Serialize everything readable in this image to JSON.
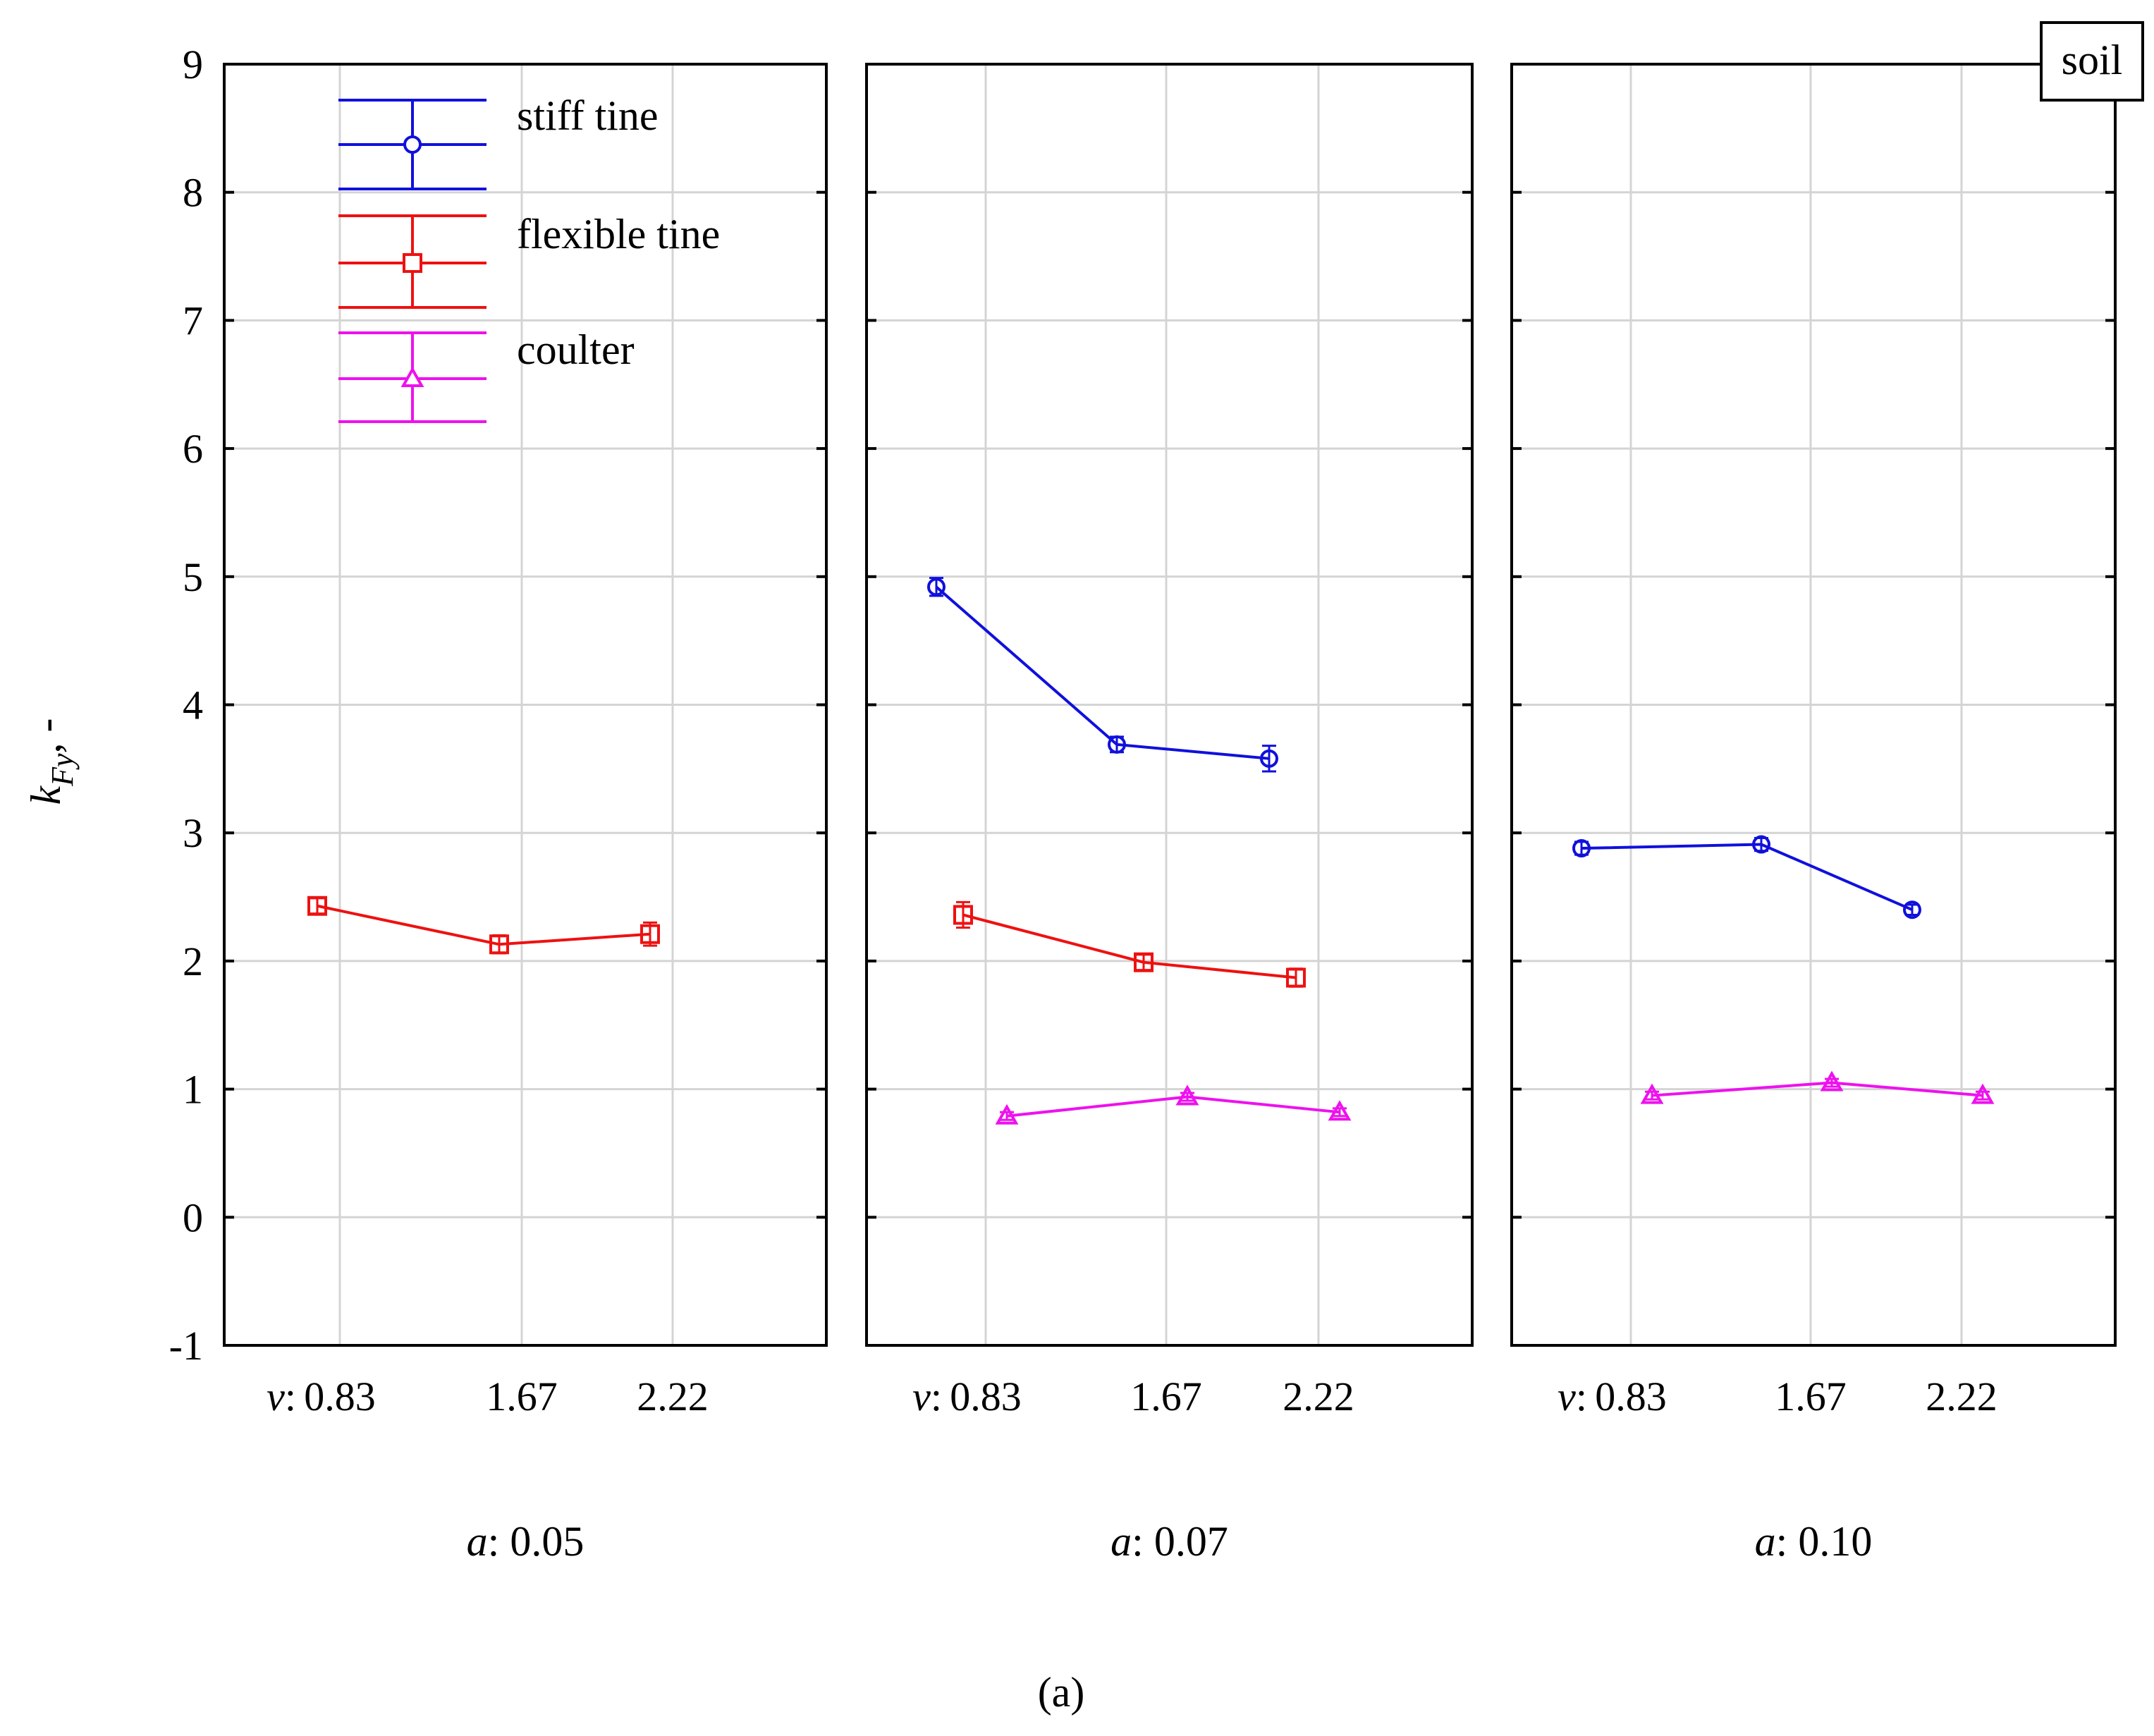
{
  "chart_data": {
    "type": "line",
    "figure_label": "(a)",
    "legend_box_label": "soil",
    "ylabel": {
      "symbol": "k",
      "subscript": "Fy",
      "suffix": ", -"
    },
    "ylim": [
      -1,
      9
    ],
    "yticks": [
      "-1",
      "0",
      "1",
      "2",
      "3",
      "4",
      "5",
      "6",
      "7",
      "8",
      "9"
    ],
    "x_prefix": "v",
    "x_categories": [
      "0.83",
      "1.67",
      "2.22"
    ],
    "panel_prefix": "a",
    "series_meta": [
      {
        "name": "stiff tine",
        "color": "#1010dd",
        "marker": "circle"
      },
      {
        "name": "flexible tine",
        "color": "#ee1111",
        "marker": "square"
      },
      {
        "name": "coulter",
        "color": "#ee11ee",
        "marker": "triangle"
      }
    ],
    "panels": [
      {
        "a": "0.05",
        "series": [
          {
            "name": "flexible tine",
            "values": [
              2.43,
              2.13,
              2.21
            ],
            "errors": [
              0.06,
              0.07,
              0.09
            ]
          }
        ]
      },
      {
        "a": "0.07",
        "series": [
          {
            "name": "stiff tine",
            "values": [
              4.92,
              3.69,
              3.58
            ],
            "errors": [
              0.07,
              0.06,
              0.1
            ]
          },
          {
            "name": "flexible tine",
            "values": [
              2.36,
              1.99,
              1.87
            ],
            "errors": [
              0.1,
              0.06,
              0.07
            ]
          },
          {
            "name": "coulter",
            "values": [
              0.79,
              0.94,
              0.82
            ],
            "errors": [
              0.03,
              0.03,
              0.03
            ]
          }
        ]
      },
      {
        "a": "0.10",
        "series": [
          {
            "name": "stiff tine",
            "values": [
              2.88,
              2.91,
              2.4
            ],
            "errors": [
              0.05,
              0.05,
              0.04
            ]
          },
          {
            "name": "coulter",
            "values": [
              0.95,
              1.05,
              0.95
            ],
            "errors": [
              0.03,
              0.03,
              0.03
            ]
          }
        ]
      }
    ]
  }
}
